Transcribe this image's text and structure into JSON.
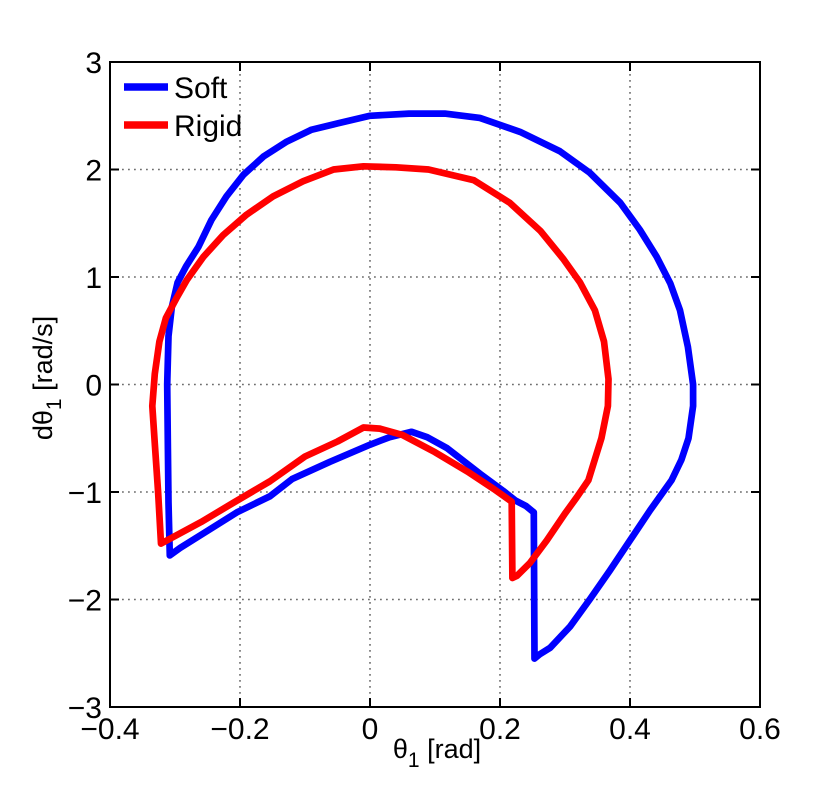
{
  "figure": {
    "background": "#ffffff",
    "axes_box_color": "#000000",
    "grid_color": "#6e6e6e"
  },
  "chart_data": {
    "type": "line",
    "title": "",
    "xlabel": "θ_1 [rad]",
    "ylabel": "dθ_1 [rad/s]",
    "xlabel_parts": {
      "main": "θ",
      "sub": "1",
      "unit": " [rad]"
    },
    "ylabel_parts": {
      "main": "dθ",
      "sub": "1",
      "unit": " [rad/s]"
    },
    "xlim": [
      -0.4,
      0.6
    ],
    "ylim": [
      -3,
      3
    ],
    "xticks": {
      "values": [
        -0.4,
        -0.2,
        0,
        0.2,
        0.4,
        0.6
      ],
      "labels": [
        "−0.4",
        "−0.2",
        "0",
        "0.2",
        "0.4",
        "0.6"
      ]
    },
    "yticks": {
      "values": [
        -3,
        -2,
        -1,
        0,
        1,
        2,
        3
      ],
      "labels": [
        "−3",
        "−2",
        "−1",
        "0",
        "1",
        "2",
        "3"
      ]
    },
    "grid": true,
    "grid_style": "dotted",
    "legend": {
      "position": "northwest",
      "frame": false
    },
    "series": [
      {
        "name": "Soft",
        "color": "#0000ff",
        "line_width": 6.7,
        "points": [
          [
            -0.308,
            -1.59
          ],
          [
            -0.31,
            -1.1
          ],
          [
            -0.311,
            -0.6
          ],
          [
            -0.312,
            0.0
          ],
          [
            -0.31,
            0.45
          ],
          [
            -0.305,
            0.72
          ],
          [
            -0.296,
            0.95
          ],
          [
            -0.283,
            1.1
          ],
          [
            -0.264,
            1.28
          ],
          [
            -0.244,
            1.53
          ],
          [
            -0.221,
            1.75
          ],
          [
            -0.195,
            1.95
          ],
          [
            -0.164,
            2.12
          ],
          [
            -0.128,
            2.26
          ],
          [
            -0.09,
            2.37
          ],
          [
            -0.049,
            2.43
          ],
          [
            0.0,
            2.5
          ],
          [
            0.06,
            2.52
          ],
          [
            0.115,
            2.52
          ],
          [
            0.169,
            2.48
          ],
          [
            0.231,
            2.35
          ],
          [
            0.292,
            2.17
          ],
          [
            0.338,
            1.97
          ],
          [
            0.385,
            1.69
          ],
          [
            0.415,
            1.44
          ],
          [
            0.441,
            1.19
          ],
          [
            0.462,
            0.94
          ],
          [
            0.477,
            0.69
          ],
          [
            0.489,
            0.35
          ],
          [
            0.497,
            0.0
          ],
          [
            0.497,
            -0.2
          ],
          [
            0.49,
            -0.5
          ],
          [
            0.479,
            -0.7
          ],
          [
            0.464,
            -0.89
          ],
          [
            0.431,
            -1.17
          ],
          [
            0.4,
            -1.45
          ],
          [
            0.369,
            -1.73
          ],
          [
            0.338,
            -2.0
          ],
          [
            0.308,
            -2.25
          ],
          [
            0.277,
            -2.45
          ],
          [
            0.261,
            -2.51
          ],
          [
            0.253,
            -2.55
          ],
          [
            0.252,
            -1.19
          ],
          [
            0.24,
            -1.13
          ],
          [
            0.224,
            -1.08
          ],
          [
            0.205,
            -0.99
          ],
          [
            0.169,
            -0.83
          ],
          [
            0.118,
            -0.59
          ],
          [
            0.088,
            -0.49
          ],
          [
            0.064,
            -0.44
          ],
          [
            0.03,
            -0.49
          ],
          [
            0.0,
            -0.56
          ],
          [
            -0.062,
            -0.72
          ],
          [
            -0.12,
            -0.88
          ],
          [
            -0.154,
            -1.04
          ],
          [
            -0.205,
            -1.19
          ],
          [
            -0.255,
            -1.38
          ],
          [
            -0.292,
            -1.52
          ],
          [
            -0.308,
            -1.59
          ]
        ]
      },
      {
        "name": "Rigid",
        "color": "#ff0000",
        "line_width": 6.7,
        "points": [
          [
            -0.3215,
            -1.48
          ],
          [
            -0.326,
            -1.0
          ],
          [
            -0.331,
            -0.55
          ],
          [
            -0.335,
            -0.2
          ],
          [
            -0.331,
            0.1
          ],
          [
            -0.324,
            0.4
          ],
          [
            -0.314,
            0.62
          ],
          [
            -0.298,
            0.8
          ],
          [
            -0.282,
            0.97
          ],
          [
            -0.256,
            1.19
          ],
          [
            -0.226,
            1.39
          ],
          [
            -0.19,
            1.58
          ],
          [
            -0.149,
            1.75
          ],
          [
            -0.103,
            1.89
          ],
          [
            -0.056,
            2.0
          ],
          [
            -0.01,
            2.03
          ],
          [
            0.04,
            2.02
          ],
          [
            0.09,
            2.0
          ],
          [
            0.16,
            1.9
          ],
          [
            0.215,
            1.69
          ],
          [
            0.262,
            1.43
          ],
          [
            0.297,
            1.17
          ],
          [
            0.323,
            0.95
          ],
          [
            0.346,
            0.69
          ],
          [
            0.36,
            0.4
          ],
          [
            0.367,
            0.05
          ],
          [
            0.366,
            -0.2
          ],
          [
            0.356,
            -0.5
          ],
          [
            0.336,
            -0.89
          ],
          [
            0.318,
            -1.05
          ],
          [
            0.3,
            -1.2
          ],
          [
            0.272,
            -1.45
          ],
          [
            0.246,
            -1.66
          ],
          [
            0.226,
            -1.78
          ],
          [
            0.219,
            -1.8
          ],
          [
            0.218,
            -1.09
          ],
          [
            0.19,
            -0.97
          ],
          [
            0.15,
            -0.81
          ],
          [
            0.1,
            -0.63
          ],
          [
            0.05,
            -0.47
          ],
          [
            0.015,
            -0.41
          ],
          [
            -0.01,
            -0.4
          ],
          [
            -0.05,
            -0.53
          ],
          [
            -0.1,
            -0.67
          ],
          [
            -0.154,
            -0.9
          ],
          [
            -0.21,
            -1.1
          ],
          [
            -0.26,
            -1.28
          ],
          [
            -0.3,
            -1.41
          ],
          [
            -0.3215,
            -1.48
          ]
        ]
      }
    ]
  }
}
